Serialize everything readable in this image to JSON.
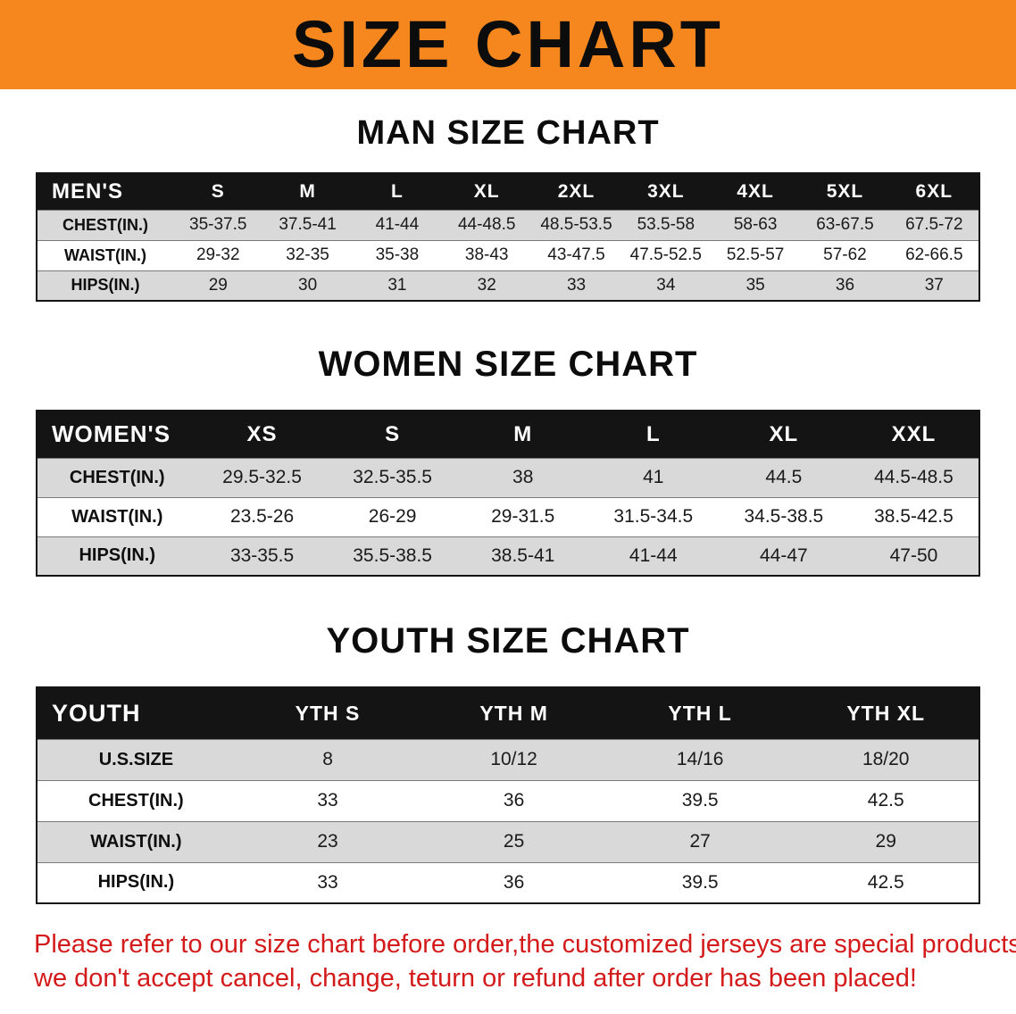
{
  "banner": {
    "title": "SIZE CHART"
  },
  "colors": {
    "banner_bg": "#f6871f",
    "header_bg": "#141414",
    "row_alt": "#d9d9d9",
    "disclaimer": "#d31b1b"
  },
  "sections": [
    {
      "id": "men",
      "heading": "MAN SIZE CHART",
      "table": {
        "header": [
          "MEN'S",
          "S",
          "M",
          "L",
          "XL",
          "2XL",
          "3XL",
          "4XL",
          "5XL",
          "6XL"
        ],
        "rows": [
          {
            "label": "CHEST(IN.)",
            "values": [
              "35-37.5",
              "37.5-41",
              "41-44",
              "44-48.5",
              "48.5-53.5",
              "53.5-58",
              "58-63",
              "63-67.5",
              "67.5-72"
            ]
          },
          {
            "label": "WAIST(IN.)",
            "values": [
              "29-32",
              "32-35",
              "35-38",
              "38-43",
              "43-47.5",
              "47.5-52.5",
              "52.5-57",
              "57-62",
              "62-66.5"
            ]
          },
          {
            "label": "HIPS(IN.)",
            "values": [
              "29",
              "30",
              "31",
              "32",
              "33",
              "34",
              "35",
              "36",
              "37"
            ]
          }
        ]
      }
    },
    {
      "id": "women",
      "heading": "WOMEN SIZE CHART",
      "table": {
        "header": [
          "WOMEN'S",
          "XS",
          "S",
          "M",
          "L",
          "XL",
          "XXL"
        ],
        "rows": [
          {
            "label": "CHEST(IN.)",
            "values": [
              "29.5-32.5",
              "32.5-35.5",
              "38",
              "41",
              "44.5",
              "44.5-48.5"
            ]
          },
          {
            "label": "WAIST(IN.)",
            "values": [
              "23.5-26",
              "26-29",
              "29-31.5",
              "31.5-34.5",
              "34.5-38.5",
              "38.5-42.5"
            ]
          },
          {
            "label": "HIPS(IN.)",
            "values": [
              "33-35.5",
              "35.5-38.5",
              "38.5-41",
              "41-44",
              "44-47",
              "47-50"
            ]
          }
        ]
      }
    },
    {
      "id": "youth",
      "heading": "YOUTH SIZE CHART",
      "table": {
        "header": [
          "YOUTH",
          "YTH S",
          "YTH M",
          "YTH L",
          "YTH XL"
        ],
        "rows": [
          {
            "label": "U.S.SIZE",
            "values": [
              "8",
              "10/12",
              "14/16",
              "18/20"
            ]
          },
          {
            "label": "CHEST(IN.)",
            "values": [
              "33",
              "36",
              "39.5",
              "42.5"
            ]
          },
          {
            "label": "WAIST(IN.)",
            "values": [
              "23",
              "25",
              "27",
              "29"
            ]
          },
          {
            "label": "HIPS(IN.)",
            "values": [
              "33",
              "36",
              "39.5",
              "42.5"
            ]
          }
        ]
      }
    }
  ],
  "disclaimer": {
    "line1": "Please refer to our size chart before order,the customized jerseys are special products,",
    "line2": "we don't accept cancel, change, teturn or refund after order has been placed!"
  }
}
